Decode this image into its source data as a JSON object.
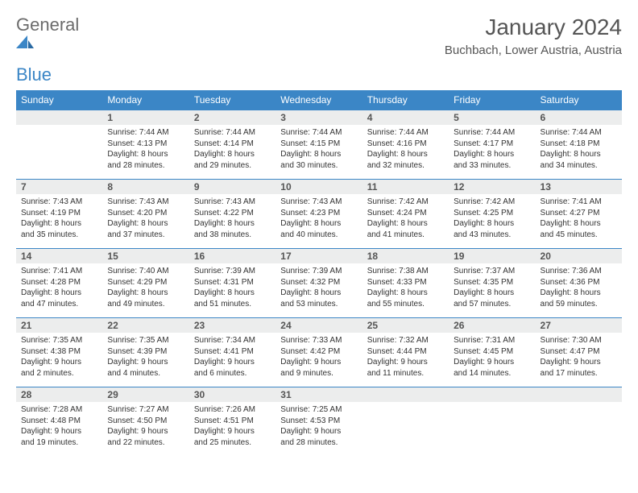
{
  "logo": {
    "text1": "General",
    "text2": "Blue"
  },
  "title": "January 2024",
  "location": "Buchbach, Lower Austria, Austria",
  "colors": {
    "header_bg": "#3b86c6",
    "header_text": "#ffffff",
    "daynum_bg": "#eceded",
    "border": "#3b86c6",
    "body_text": "#333333",
    "title_text": "#555555"
  },
  "calendar": {
    "day_names": [
      "Sunday",
      "Monday",
      "Tuesday",
      "Wednesday",
      "Thursday",
      "Friday",
      "Saturday"
    ],
    "weeks": [
      [
        {
          "day": "",
          "sunrise": "",
          "sunset": "",
          "daylight1": "",
          "daylight2": ""
        },
        {
          "day": "1",
          "sunrise": "Sunrise: 7:44 AM",
          "sunset": "Sunset: 4:13 PM",
          "daylight1": "Daylight: 8 hours",
          "daylight2": "and 28 minutes."
        },
        {
          "day": "2",
          "sunrise": "Sunrise: 7:44 AM",
          "sunset": "Sunset: 4:14 PM",
          "daylight1": "Daylight: 8 hours",
          "daylight2": "and 29 minutes."
        },
        {
          "day": "3",
          "sunrise": "Sunrise: 7:44 AM",
          "sunset": "Sunset: 4:15 PM",
          "daylight1": "Daylight: 8 hours",
          "daylight2": "and 30 minutes."
        },
        {
          "day": "4",
          "sunrise": "Sunrise: 7:44 AM",
          "sunset": "Sunset: 4:16 PM",
          "daylight1": "Daylight: 8 hours",
          "daylight2": "and 32 minutes."
        },
        {
          "day": "5",
          "sunrise": "Sunrise: 7:44 AM",
          "sunset": "Sunset: 4:17 PM",
          "daylight1": "Daylight: 8 hours",
          "daylight2": "and 33 minutes."
        },
        {
          "day": "6",
          "sunrise": "Sunrise: 7:44 AM",
          "sunset": "Sunset: 4:18 PM",
          "daylight1": "Daylight: 8 hours",
          "daylight2": "and 34 minutes."
        }
      ],
      [
        {
          "day": "7",
          "sunrise": "Sunrise: 7:43 AM",
          "sunset": "Sunset: 4:19 PM",
          "daylight1": "Daylight: 8 hours",
          "daylight2": "and 35 minutes."
        },
        {
          "day": "8",
          "sunrise": "Sunrise: 7:43 AM",
          "sunset": "Sunset: 4:20 PM",
          "daylight1": "Daylight: 8 hours",
          "daylight2": "and 37 minutes."
        },
        {
          "day": "9",
          "sunrise": "Sunrise: 7:43 AM",
          "sunset": "Sunset: 4:22 PM",
          "daylight1": "Daylight: 8 hours",
          "daylight2": "and 38 minutes."
        },
        {
          "day": "10",
          "sunrise": "Sunrise: 7:43 AM",
          "sunset": "Sunset: 4:23 PM",
          "daylight1": "Daylight: 8 hours",
          "daylight2": "and 40 minutes."
        },
        {
          "day": "11",
          "sunrise": "Sunrise: 7:42 AM",
          "sunset": "Sunset: 4:24 PM",
          "daylight1": "Daylight: 8 hours",
          "daylight2": "and 41 minutes."
        },
        {
          "day": "12",
          "sunrise": "Sunrise: 7:42 AM",
          "sunset": "Sunset: 4:25 PM",
          "daylight1": "Daylight: 8 hours",
          "daylight2": "and 43 minutes."
        },
        {
          "day": "13",
          "sunrise": "Sunrise: 7:41 AM",
          "sunset": "Sunset: 4:27 PM",
          "daylight1": "Daylight: 8 hours",
          "daylight2": "and 45 minutes."
        }
      ],
      [
        {
          "day": "14",
          "sunrise": "Sunrise: 7:41 AM",
          "sunset": "Sunset: 4:28 PM",
          "daylight1": "Daylight: 8 hours",
          "daylight2": "and 47 minutes."
        },
        {
          "day": "15",
          "sunrise": "Sunrise: 7:40 AM",
          "sunset": "Sunset: 4:29 PM",
          "daylight1": "Daylight: 8 hours",
          "daylight2": "and 49 minutes."
        },
        {
          "day": "16",
          "sunrise": "Sunrise: 7:39 AM",
          "sunset": "Sunset: 4:31 PM",
          "daylight1": "Daylight: 8 hours",
          "daylight2": "and 51 minutes."
        },
        {
          "day": "17",
          "sunrise": "Sunrise: 7:39 AM",
          "sunset": "Sunset: 4:32 PM",
          "daylight1": "Daylight: 8 hours",
          "daylight2": "and 53 minutes."
        },
        {
          "day": "18",
          "sunrise": "Sunrise: 7:38 AM",
          "sunset": "Sunset: 4:33 PM",
          "daylight1": "Daylight: 8 hours",
          "daylight2": "and 55 minutes."
        },
        {
          "day": "19",
          "sunrise": "Sunrise: 7:37 AM",
          "sunset": "Sunset: 4:35 PM",
          "daylight1": "Daylight: 8 hours",
          "daylight2": "and 57 minutes."
        },
        {
          "day": "20",
          "sunrise": "Sunrise: 7:36 AM",
          "sunset": "Sunset: 4:36 PM",
          "daylight1": "Daylight: 8 hours",
          "daylight2": "and 59 minutes."
        }
      ],
      [
        {
          "day": "21",
          "sunrise": "Sunrise: 7:35 AM",
          "sunset": "Sunset: 4:38 PM",
          "daylight1": "Daylight: 9 hours",
          "daylight2": "and 2 minutes."
        },
        {
          "day": "22",
          "sunrise": "Sunrise: 7:35 AM",
          "sunset": "Sunset: 4:39 PM",
          "daylight1": "Daylight: 9 hours",
          "daylight2": "and 4 minutes."
        },
        {
          "day": "23",
          "sunrise": "Sunrise: 7:34 AM",
          "sunset": "Sunset: 4:41 PM",
          "daylight1": "Daylight: 9 hours",
          "daylight2": "and 6 minutes."
        },
        {
          "day": "24",
          "sunrise": "Sunrise: 7:33 AM",
          "sunset": "Sunset: 4:42 PM",
          "daylight1": "Daylight: 9 hours",
          "daylight2": "and 9 minutes."
        },
        {
          "day": "25",
          "sunrise": "Sunrise: 7:32 AM",
          "sunset": "Sunset: 4:44 PM",
          "daylight1": "Daylight: 9 hours",
          "daylight2": "and 11 minutes."
        },
        {
          "day": "26",
          "sunrise": "Sunrise: 7:31 AM",
          "sunset": "Sunset: 4:45 PM",
          "daylight1": "Daylight: 9 hours",
          "daylight2": "and 14 minutes."
        },
        {
          "day": "27",
          "sunrise": "Sunrise: 7:30 AM",
          "sunset": "Sunset: 4:47 PM",
          "daylight1": "Daylight: 9 hours",
          "daylight2": "and 17 minutes."
        }
      ],
      [
        {
          "day": "28",
          "sunrise": "Sunrise: 7:28 AM",
          "sunset": "Sunset: 4:48 PM",
          "daylight1": "Daylight: 9 hours",
          "daylight2": "and 19 minutes."
        },
        {
          "day": "29",
          "sunrise": "Sunrise: 7:27 AM",
          "sunset": "Sunset: 4:50 PM",
          "daylight1": "Daylight: 9 hours",
          "daylight2": "and 22 minutes."
        },
        {
          "day": "30",
          "sunrise": "Sunrise: 7:26 AM",
          "sunset": "Sunset: 4:51 PM",
          "daylight1": "Daylight: 9 hours",
          "daylight2": "and 25 minutes."
        },
        {
          "day": "31",
          "sunrise": "Sunrise: 7:25 AM",
          "sunset": "Sunset: 4:53 PM",
          "daylight1": "Daylight: 9 hours",
          "daylight2": "and 28 minutes."
        },
        {
          "day": "",
          "sunrise": "",
          "sunset": "",
          "daylight1": "",
          "daylight2": ""
        },
        {
          "day": "",
          "sunrise": "",
          "sunset": "",
          "daylight1": "",
          "daylight2": ""
        },
        {
          "day": "",
          "sunrise": "",
          "sunset": "",
          "daylight1": "",
          "daylight2": ""
        }
      ]
    ]
  }
}
